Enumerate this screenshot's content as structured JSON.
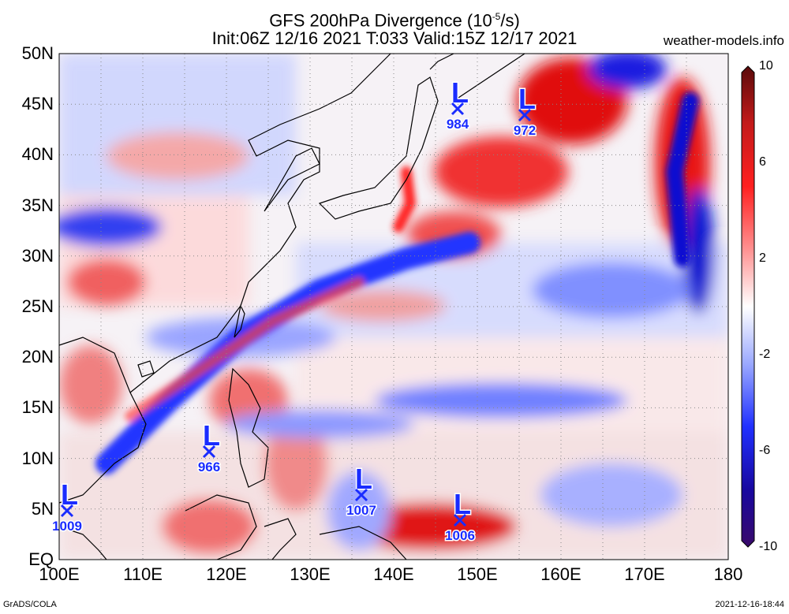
{
  "header": {
    "title_line1": "GFS 200hPa Divergence (10",
    "title_exp": "-5",
    "title_unit": "/s)",
    "title_line2": "Init:06Z 12/16 2021 T:033 Valid:15Z 12/17 2021",
    "site": "weather-models.info"
  },
  "footer": {
    "left": "GrADS/COLA",
    "right": "2021-12-16-18:44"
  },
  "lat_labels": [
    "50N",
    "45N",
    "40N",
    "35N",
    "30N",
    "25N",
    "20N",
    "15N",
    "10N",
    "5N",
    "EQ"
  ],
  "lon_labels": [
    "100E",
    "110E",
    "120E",
    "130E",
    "140E",
    "150E",
    "160E",
    "170E",
    "180"
  ],
  "colorbar": {
    "labels": [
      "10",
      "6",
      "2",
      "-2",
      "-6",
      "-10"
    ],
    "colors": [
      "#5a0a0a",
      "#c41a1a",
      "#ff2020",
      "#ff9090",
      "#ffffff",
      "#9aa8ff",
      "#2030ff",
      "#1808a0",
      "#3a0a6a"
    ]
  },
  "lows": [
    {
      "pressure": "984"
    },
    {
      "pressure": "972"
    },
    {
      "pressure": "966"
    },
    {
      "pressure": "1009"
    },
    {
      "pressure": "1007"
    },
    {
      "pressure": "1006"
    }
  ],
  "colors": {
    "low_marker": "#1a2cff",
    "positive": "#e01818",
    "negative": "#1828e8"
  }
}
